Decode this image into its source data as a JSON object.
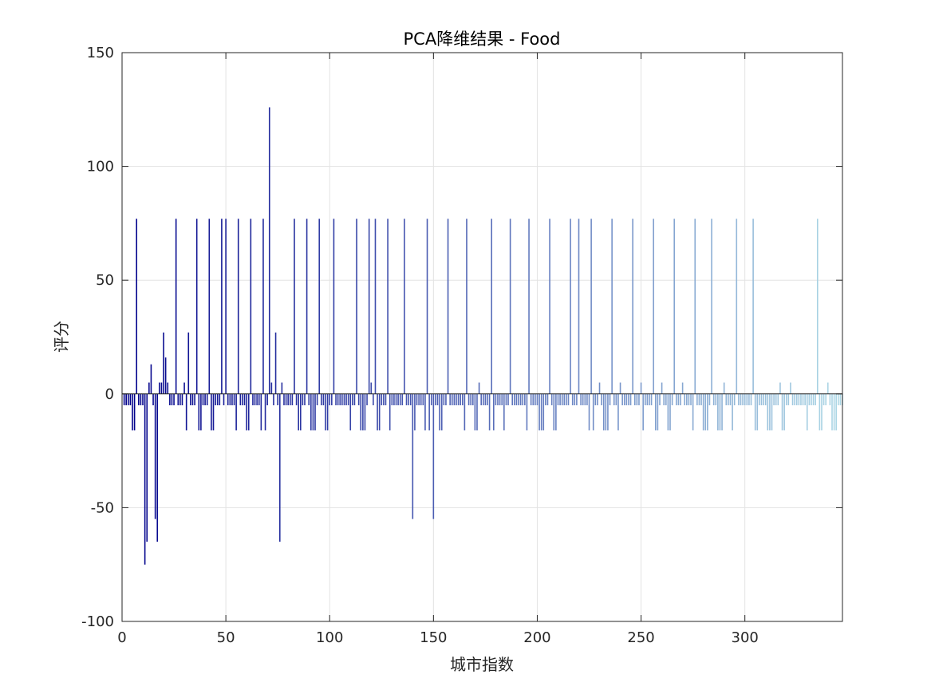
{
  "chart_data": {
    "type": "bar",
    "title": "PCA降维结果 - Food",
    "xlabel": "城市指数",
    "ylabel": "评分",
    "xlim": [
      0,
      347
    ],
    "ylim": [
      -100,
      150
    ],
    "xticks": [
      0,
      50,
      100,
      150,
      200,
      250,
      300
    ],
    "yticks": [
      -100,
      -50,
      0,
      50,
      100,
      150
    ],
    "xtick_labels": [
      "0",
      "50",
      "100",
      "150",
      "200",
      "250",
      "300"
    ],
    "ytick_labels": [
      "-100",
      "-50",
      "0",
      "50",
      "100",
      "150"
    ],
    "grid": true,
    "colormap": [
      "#00008b",
      "#add8e6"
    ],
    "baseline_value": -5,
    "default_negative": -16,
    "special_points": [
      {
        "x": 7,
        "y": 77
      },
      {
        "x": 11,
        "y": -75
      },
      {
        "x": 12,
        "y": -65
      },
      {
        "x": 13,
        "y": 5
      },
      {
        "x": 14,
        "y": 13
      },
      {
        "x": 16,
        "y": -55
      },
      {
        "x": 17,
        "y": -65
      },
      {
        "x": 18,
        "y": 5
      },
      {
        "x": 19,
        "y": 5
      },
      {
        "x": 20,
        "y": 27
      },
      {
        "x": 21,
        "y": 16
      },
      {
        "x": 22,
        "y": 5
      },
      {
        "x": 26,
        "y": 77
      },
      {
        "x": 30,
        "y": 5
      },
      {
        "x": 32,
        "y": 27
      },
      {
        "x": 36,
        "y": 77
      },
      {
        "x": 42,
        "y": 77
      },
      {
        "x": 48,
        "y": 77
      },
      {
        "x": 50,
        "y": 77
      },
      {
        "x": 56,
        "y": 77
      },
      {
        "x": 62,
        "y": 77
      },
      {
        "x": 68,
        "y": 77
      },
      {
        "x": 71,
        "y": 126
      },
      {
        "x": 72,
        "y": 5
      },
      {
        "x": 74,
        "y": 27
      },
      {
        "x": 76,
        "y": -65
      },
      {
        "x": 77,
        "y": 5
      },
      {
        "x": 83,
        "y": 77
      },
      {
        "x": 89,
        "y": 77
      },
      {
        "x": 95,
        "y": 77
      },
      {
        "x": 102,
        "y": 77
      },
      {
        "x": 113,
        "y": 77
      },
      {
        "x": 119,
        "y": 77
      },
      {
        "x": 120,
        "y": 5
      },
      {
        "x": 122,
        "y": 77
      },
      {
        "x": 128,
        "y": 77
      },
      {
        "x": 136,
        "y": 77
      },
      {
        "x": 140,
        "y": -55
      },
      {
        "x": 147,
        "y": 77
      },
      {
        "x": 150,
        "y": -55
      },
      {
        "x": 157,
        "y": 77
      },
      {
        "x": 166,
        "y": 77
      },
      {
        "x": 172,
        "y": 5
      },
      {
        "x": 178,
        "y": 77
      },
      {
        "x": 187,
        "y": 77
      },
      {
        "x": 196,
        "y": 77
      },
      {
        "x": 206,
        "y": 77
      },
      {
        "x": 216,
        "y": 77
      },
      {
        "x": 220,
        "y": 77
      },
      {
        "x": 226,
        "y": 77
      },
      {
        "x": 230,
        "y": 5
      },
      {
        "x": 236,
        "y": 77
      },
      {
        "x": 240,
        "y": 5
      },
      {
        "x": 246,
        "y": 77
      },
      {
        "x": 250,
        "y": 5
      },
      {
        "x": 256,
        "y": 77
      },
      {
        "x": 260,
        "y": 5
      },
      {
        "x": 266,
        "y": 77
      },
      {
        "x": 270,
        "y": 5
      },
      {
        "x": 276,
        "y": 77
      },
      {
        "x": 284,
        "y": 77
      },
      {
        "x": 290,
        "y": 5
      },
      {
        "x": 296,
        "y": 77
      },
      {
        "x": 304,
        "y": 77
      },
      {
        "x": 317,
        "y": 5
      },
      {
        "x": 322,
        "y": 5
      },
      {
        "x": 335,
        "y": 77
      },
      {
        "x": 340,
        "y": 5
      }
    ],
    "n_points": 347
  }
}
